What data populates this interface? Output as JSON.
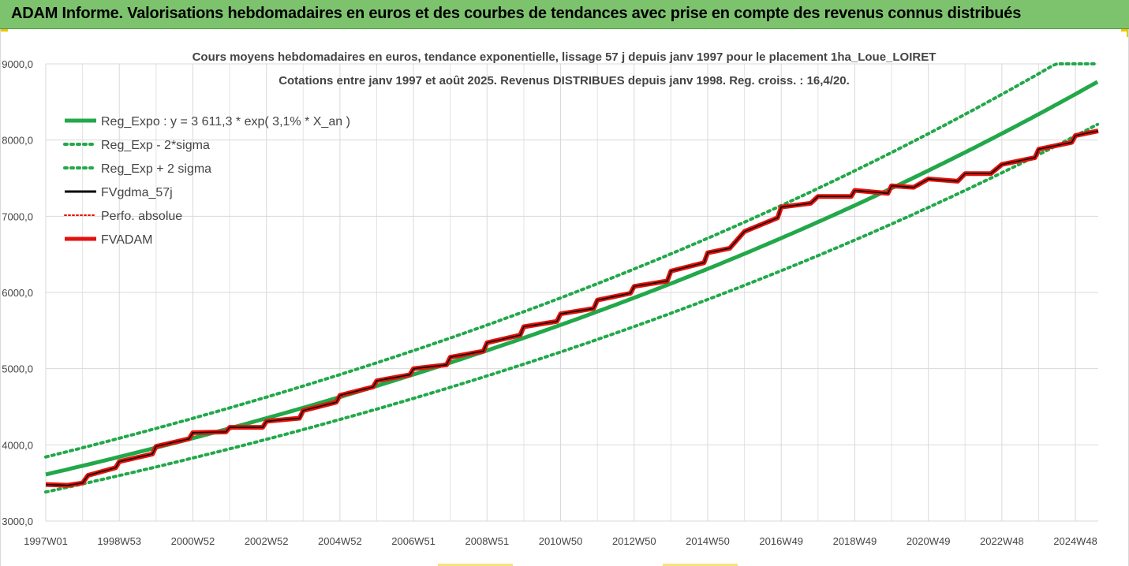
{
  "banner": {
    "title": "ADAM Informe. Valorisations hebdomadaires en euros et des courbes de tendances avec prise en compte des revenus connus distribués"
  },
  "chart_data": {
    "type": "line",
    "title": "Cours moyens hebdomadaires en euros, tendance exponentielle, lissage 57 j depuis janv 1997  pour le placement 1ha_Loue_LOIRET",
    "subtitle": "Cotations entre janv 1997 et août 2025. Revenus DISTRIBUES depuis janv 1998. Reg. croiss. : 16,4/20.",
    "x_tick_labels": [
      "1997W01",
      "1998W53",
      "2000W52",
      "2002W52",
      "2004W52",
      "2006W51",
      "2008W51",
      "2010W50",
      "2012W50",
      "2014W50",
      "2016W49",
      "2018W49",
      "2020W49",
      "2022W48",
      "2024W48"
    ],
    "y_tick_labels": [
      "3000,0",
      "4000,0",
      "5000,0",
      "6000,0",
      "7000,0",
      "8000,0",
      "9000,0"
    ],
    "xlim": [
      1997.0,
      2025.62
    ],
    "ylim": [
      3000,
      9000
    ],
    "grid": {
      "vertical": true,
      "horizontal": true
    },
    "legend_position": "top-left",
    "regression": {
      "a": 3611.3,
      "rate": 0.031,
      "sigma_band": 230
    },
    "series": [
      {
        "name": "Reg_Expo : y = 3 611,3 * exp( 3,1% *  X_an )",
        "color": "#22a84a",
        "style": "solid"
      },
      {
        "name": "Reg_Exp - 2*sigma",
        "color": "#22a84a",
        "style": "dotted"
      },
      {
        "name": "Reg_Exp + 2 sigma",
        "color": "#22a84a",
        "style": "dotted"
      },
      {
        "name": "FVgdma_57j",
        "color": "#000000",
        "style": "solid"
      },
      {
        "name": "Perfo. absolue",
        "color": "#e3120b",
        "style": "dotted"
      },
      {
        "name": "FVADAM",
        "color": "#e3120b",
        "style": "solid"
      }
    ],
    "fvadam_points": [
      [
        1997.0,
        3480
      ],
      [
        1997.6,
        3470
      ],
      [
        1998.0,
        3500
      ],
      [
        1998.15,
        3600
      ],
      [
        1998.9,
        3700
      ],
      [
        1999.0,
        3780
      ],
      [
        1999.9,
        3880
      ],
      [
        2000.0,
        3980
      ],
      [
        2000.9,
        4080
      ],
      [
        2001.0,
        4160
      ],
      [
        2001.9,
        4170
      ],
      [
        2002.0,
        4230
      ],
      [
        2002.9,
        4230
      ],
      [
        2003.0,
        4310
      ],
      [
        2003.9,
        4350
      ],
      [
        2004.0,
        4450
      ],
      [
        2004.9,
        4560
      ],
      [
        2005.0,
        4650
      ],
      [
        2005.9,
        4760
      ],
      [
        2006.0,
        4840
      ],
      [
        2006.9,
        4920
      ],
      [
        2007.0,
        5000
      ],
      [
        2007.9,
        5050
      ],
      [
        2008.0,
        5150
      ],
      [
        2008.9,
        5230
      ],
      [
        2009.0,
        5340
      ],
      [
        2009.9,
        5440
      ],
      [
        2010.0,
        5550
      ],
      [
        2010.9,
        5620
      ],
      [
        2011.0,
        5720
      ],
      [
        2011.9,
        5790
      ],
      [
        2012.0,
        5900
      ],
      [
        2012.9,
        5990
      ],
      [
        2013.0,
        6080
      ],
      [
        2013.9,
        6150
      ],
      [
        2014.0,
        6280
      ],
      [
        2014.9,
        6390
      ],
      [
        2015.0,
        6520
      ],
      [
        2015.6,
        6580
      ],
      [
        2016.0,
        6800
      ],
      [
        2016.9,
        6980
      ],
      [
        2017.0,
        7120
      ],
      [
        2017.8,
        7170
      ],
      [
        2018.0,
        7260
      ],
      [
        2018.9,
        7260
      ],
      [
        2019.0,
        7340
      ],
      [
        2019.9,
        7300
      ],
      [
        2020.0,
        7400
      ],
      [
        2020.6,
        7380
      ],
      [
        2021.0,
        7490
      ],
      [
        2021.8,
        7460
      ],
      [
        2022.0,
        7560
      ],
      [
        2022.7,
        7560
      ],
      [
        2023.0,
        7680
      ],
      [
        2023.9,
        7770
      ],
      [
        2024.0,
        7880
      ],
      [
        2024.9,
        7970
      ],
      [
        2025.0,
        8060
      ],
      [
        2025.62,
        8120
      ]
    ]
  }
}
